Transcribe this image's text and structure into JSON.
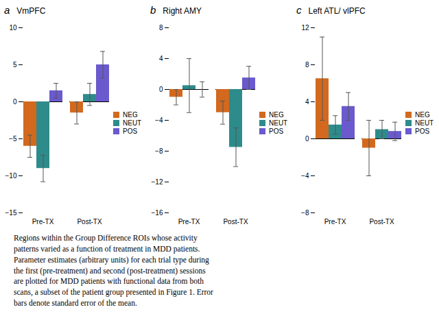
{
  "chart_data": [
    {
      "type": "bar",
      "label": "a",
      "title": "VmPFC",
      "categories": [
        "Pre-TX",
        "Post-TX"
      ],
      "series": [
        {
          "name": "NEG",
          "color": "#D2691E",
          "values": [
            -6.0,
            -1.5
          ],
          "errors": [
            1.5,
            1.5
          ]
        },
        {
          "name": "NEUT",
          "color": "#2E8B8B",
          "values": [
            -9.0,
            1.0
          ],
          "errors": [
            1.8,
            1.5
          ]
        },
        {
          "name": "POS",
          "color": "#6A5ACD",
          "values": [
            1.5,
            5.0
          ],
          "errors": [
            1.0,
            1.8
          ]
        }
      ],
      "ylim": [
        -15,
        10
      ],
      "yticks": [
        -15,
        -10,
        -5,
        0,
        5,
        10
      ],
      "grid": false,
      "legend": "right"
    },
    {
      "type": "bar",
      "label": "b",
      "title": "Right AMY",
      "categories": [
        "Pre-TX",
        "Post-TX"
      ],
      "series": [
        {
          "name": "NEG",
          "color": "#D2691E",
          "values": [
            -1.0,
            -3.0
          ],
          "errors": [
            1.0,
            1.5
          ]
        },
        {
          "name": "NEUT",
          "color": "#2E8B8B",
          "values": [
            0.5,
            -7.5
          ],
          "errors": [
            3.5,
            2.5
          ]
        },
        {
          "name": "POS",
          "color": "#6A5ACD",
          "values": [
            0.0,
            1.5
          ],
          "errors": [
            1.0,
            1.5
          ]
        }
      ],
      "ylim": [
        -16,
        8
      ],
      "yticks": [
        -16,
        -12,
        -8,
        -4,
        0,
        4,
        8
      ],
      "grid": false,
      "legend": "right"
    },
    {
      "type": "bar",
      "label": "c",
      "title": "Left ATL/ vlPFC",
      "categories": [
        "Pre-TX",
        "Post-TX"
      ],
      "series": [
        {
          "name": "NEG",
          "color": "#D2691E",
          "values": [
            6.5,
            -1.0
          ],
          "errors": [
            4.5,
            3.0
          ]
        },
        {
          "name": "NEUT",
          "color": "#2E8B8B",
          "values": [
            1.5,
            1.0
          ],
          "errors": [
            1.0,
            1.0
          ]
        },
        {
          "name": "POS",
          "color": "#6A5ACD",
          "values": [
            3.5,
            0.8
          ],
          "errors": [
            1.5,
            1.0
          ]
        }
      ],
      "ylim": [
        -8,
        12
      ],
      "yticks": [
        -8,
        -4,
        0,
        4,
        8,
        12
      ],
      "grid": false,
      "legend": "right"
    }
  ],
  "caption": "Regions within the Group Difference ROIs whose activity\npatterns varied as a function of treatment in MDD patients.\nParameter estimates (arbitrary units) for each trial type during\nthe first (pre-treatment) and second (post-treatment) sessions\nare plotted for MDD patients with functional data from both\nscans, a subset of the patient group presented in Figure 1. Error\nbars denote standard error of the mean."
}
